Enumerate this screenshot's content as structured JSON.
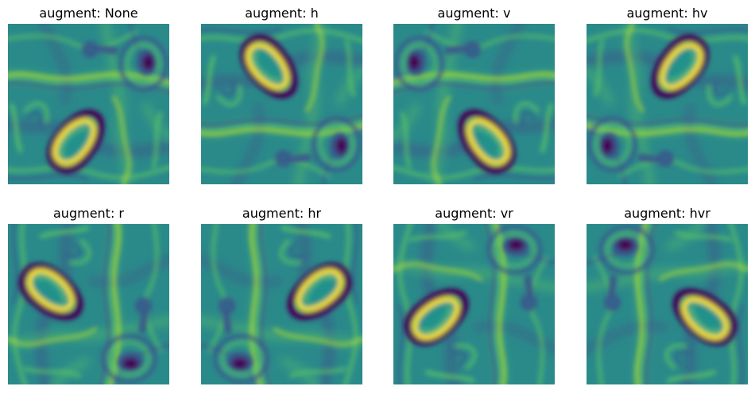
{
  "colormap": [
    "#440154",
    "#3b528b",
    "#21918c",
    "#5ec962",
    "#fde725"
  ],
  "field_background": "#2a8a8a",
  "panels": [
    {
      "title": "augment: None",
      "flip_h": false,
      "flip_v": false,
      "rotate": false
    },
    {
      "title": "augment: h",
      "flip_h": true,
      "flip_v": false,
      "rotate": false
    },
    {
      "title": "augment: v",
      "flip_h": false,
      "flip_v": true,
      "rotate": false
    },
    {
      "title": "augment: hv",
      "flip_h": true,
      "flip_v": true,
      "rotate": false
    },
    {
      "title": "augment: r",
      "flip_h": false,
      "flip_v": false,
      "rotate": true
    },
    {
      "title": "augment: hr",
      "flip_h": true,
      "flip_v": false,
      "rotate": true
    },
    {
      "title": "augment: vr",
      "flip_h": false,
      "flip_v": true,
      "rotate": true
    },
    {
      "title": "augment: hvr",
      "flip_h": true,
      "flip_v": true,
      "rotate": true
    }
  ]
}
